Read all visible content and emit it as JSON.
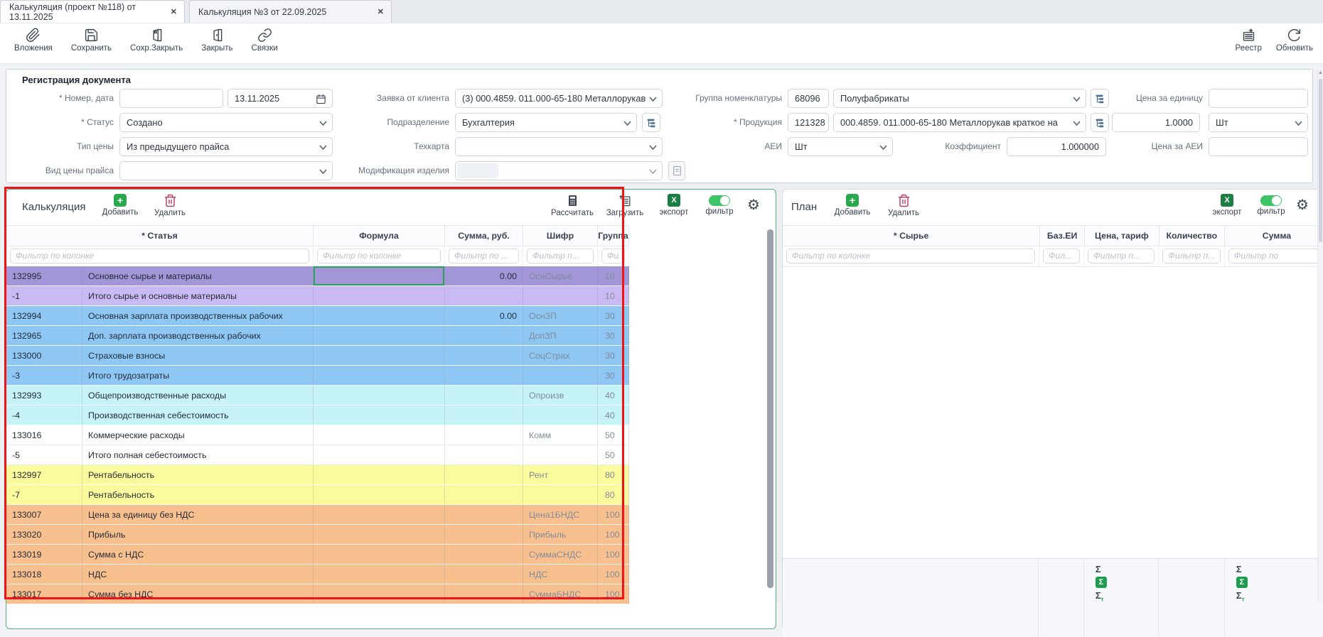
{
  "tabs": [
    {
      "label": "Калькуляция (проект №118) от 13.11.2025",
      "close": "✕",
      "active": true
    },
    {
      "label": "Калькуляция №3 от 22.09.2025",
      "close": "✕",
      "active": false
    }
  ],
  "toolbar": {
    "attachments_label": "Вложения",
    "save_label": "Сохранить",
    "save_close_label": "Сохр.Закрыть",
    "close_label": "Закрыть",
    "links_label": "Связки",
    "registry_label": "Реестр",
    "refresh_label": "Обновить"
  },
  "registration": {
    "title": "Регистрация документа",
    "number_date_label": "* Номер, дата",
    "number_value": "",
    "date_value": "13.11.2025",
    "status_label": "* Статус",
    "status_value": "Создано",
    "price_type_label": "Тип цены",
    "price_type_value": "Из предыдущего прайса",
    "price_kind_label": "Вид цены прайса",
    "price_kind_value": "",
    "client_request_label": "Заявка от клиента",
    "client_request_value": "(3) 000.4859. 011.000-65-180 Металлорукав",
    "department_label": "Подразделение",
    "department_value": "Бухгалтерия",
    "techcard_label": "Техкарта",
    "techcard_value": "",
    "modification_label": "Модификация изделия",
    "modification_value": "",
    "nomenclature_group_label": "Группа номенклатуры",
    "nomenclature_group_code": "68096",
    "nomenclature_group_value": "Полуфабрикаты",
    "product_label": "* Продукция",
    "product_code": "121328",
    "product_value": "000.4859. 011.000-65-180 Металлорукав краткое на",
    "aei_label": "АЕИ",
    "aei_value": "Шт",
    "coefficient_label": "Коэффициент",
    "coefficient_value": "1.000000",
    "unit_price_label": "Цена за единицу",
    "unit_price_value": "",
    "qty_value": "1.0000",
    "qty_unit_value": "Шт",
    "aei_price_label": "Цена за АЕИ",
    "aei_price_value": ""
  },
  "calc_panel": {
    "title": "Калькуляция",
    "add_label": "Добавить",
    "delete_label": "Удалить",
    "calculate_label": "Рассчитать",
    "load_label": "Загрузить",
    "export_label": "экспорт",
    "filter_label": "фильтр",
    "columns": [
      "* Статья",
      "Формула",
      "Сумма, руб.",
      "Шифр",
      "Группа"
    ],
    "filters": [
      "Фильтр по колонке",
      "Фильтр по колонке",
      "Фильтр по ...",
      "Фильтр п...",
      "Фил..."
    ],
    "rows": [
      {
        "id": "132995",
        "article": "Основное сырье и материалы",
        "formula": "",
        "sum": "0.00",
        "code": "ОснСырье",
        "group": "10",
        "color": "#a295d8",
        "selected_formula": true
      },
      {
        "id": "-1",
        "article": "Итого сырье и основные материалы",
        "formula": "",
        "sum": "",
        "code": "",
        "group": "10",
        "color": "#c9baf3"
      },
      {
        "id": "132994",
        "article": "Основная зарплата производственных рабочих",
        "formula": "",
        "sum": "0.00",
        "code": "ОснЗП",
        "group": "30",
        "color": "#8ec7f4"
      },
      {
        "id": "132965",
        "article": "Доп. зарплата производственных рабочих",
        "formula": "",
        "sum": "",
        "code": "ДопЗП",
        "group": "30",
        "color": "#8ec7f4"
      },
      {
        "id": "133000",
        "article": "Страховые взносы",
        "formula": "",
        "sum": "",
        "code": "СоцСтрах",
        "group": "30",
        "color": "#8ec7f4"
      },
      {
        "id": "-3",
        "article": "Итого трудозатраты",
        "formula": "",
        "sum": "",
        "code": "",
        "group": "30",
        "color": "#8ec7f4"
      },
      {
        "id": "132993",
        "article": "Общепроизводственные расходы",
        "formula": "",
        "sum": "",
        "code": "Опроизв",
        "group": "40",
        "color": "#c6f3f7"
      },
      {
        "id": "-4",
        "article": "Производственная себестоимость",
        "formula": "",
        "sum": "",
        "code": "",
        "group": "40",
        "color": "#c6f3f7"
      },
      {
        "id": "133016",
        "article": "Коммерческие расходы",
        "formula": "",
        "sum": "",
        "code": "Комм",
        "group": "50",
        "color": "#ffffff"
      },
      {
        "id": "-5",
        "article": "Итого полная себестоимость",
        "formula": "",
        "sum": "",
        "code": "",
        "group": "50",
        "color": "#ffffff"
      },
      {
        "id": "132997",
        "article": "Рентабельность",
        "formula": "",
        "sum": "",
        "code": "Рент",
        "group": "80",
        "color": "#fbfa9c"
      },
      {
        "id": "-7",
        "article": "Рентабельность",
        "formula": "",
        "sum": "",
        "code": "",
        "group": "80",
        "color": "#fbfa9c"
      },
      {
        "id": "133007",
        "article": "Цена за единицу без НДС",
        "formula": "",
        "sum": "",
        "code": "Цена1БНДС",
        "group": "100",
        "color": "#f9c08f"
      },
      {
        "id": "133020",
        "article": "Прибыль",
        "formula": "",
        "sum": "",
        "code": "Прибыль",
        "group": "100",
        "color": "#f9c08f"
      },
      {
        "id": "133019",
        "article": "Сумма с НДС",
        "formula": "",
        "sum": "",
        "code": "СуммаСНДС",
        "group": "100",
        "color": "#f9c08f"
      },
      {
        "id": "133018",
        "article": "НДС",
        "formula": "",
        "sum": "",
        "code": "НДС",
        "group": "100",
        "color": "#f9c08f"
      },
      {
        "id": "133017",
        "article": "Сумма без НДС",
        "formula": "",
        "sum": "",
        "code": "СуммаБНДС",
        "group": "100",
        "color": "#f9c08f"
      }
    ]
  },
  "plan_panel": {
    "title": "План",
    "add_label": "Добавить",
    "delete_label": "Удалить",
    "export_label": "экспорт",
    "filter_label": "фильтр",
    "columns": [
      "* Сырье",
      "Баз.ЕИ",
      "Цена, тариф",
      "Количество",
      "Сумма"
    ],
    "filters": [
      "Фильтр по колонке",
      "Фил...",
      "Фильтр п...",
      "Фильтр п...",
      "Фильтр по"
    ],
    "sum_symbol": "Σ",
    "sum_total_sub": "т"
  },
  "annotation_color": "#f21414"
}
